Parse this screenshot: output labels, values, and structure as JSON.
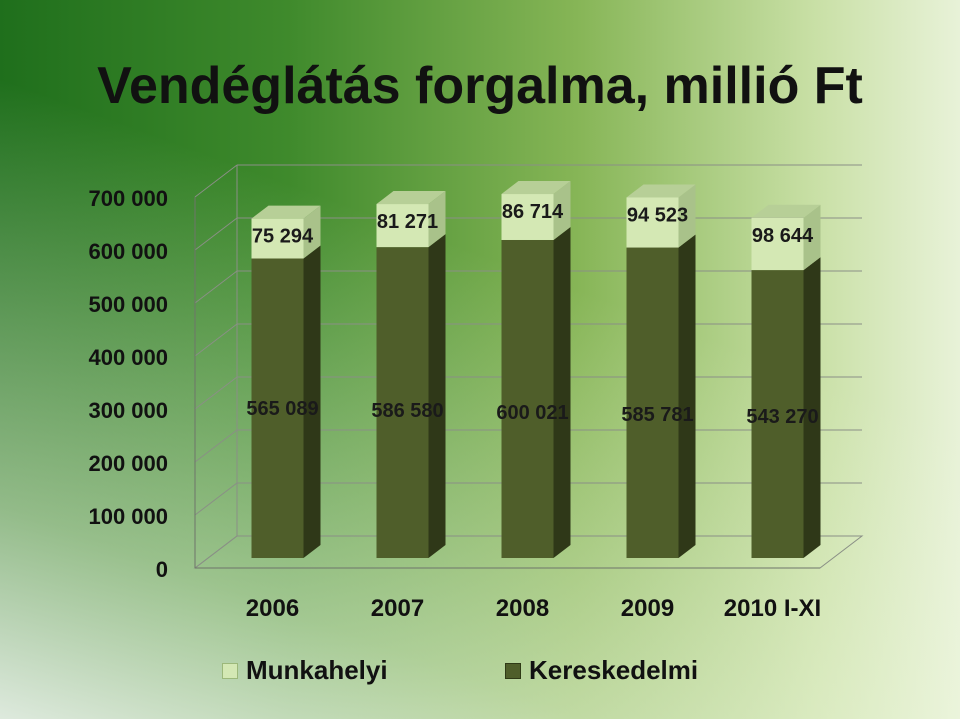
{
  "title": "Vendéglátás forgalma, millió Ft",
  "chart_data": {
    "type": "bar",
    "stacked": true,
    "title": "Vendéglátás forgalma, millió Ft",
    "categories": [
      "2006",
      "2007",
      "2008",
      "2009",
      "2010 I-XI"
    ],
    "series": [
      {
        "name": "Kereskedelmi",
        "values": [
          565089,
          586580,
          600021,
          585781,
          543270
        ],
        "value_labels": [
          "565 089",
          "586 580",
          "600 021",
          "585 781",
          "543 270"
        ],
        "color": "#4f5e2a"
      },
      {
        "name": "Munkahelyi",
        "values": [
          75294,
          81271,
          86714,
          94523,
          98644
        ],
        "value_labels": [
          "75 294",
          "81 271",
          "86 714",
          "94 523",
          "98 644"
        ],
        "color": "#d4e8b4"
      }
    ],
    "ylim": [
      0,
      700000
    ],
    "yticks": [
      0,
      100000,
      200000,
      300000,
      400000,
      500000,
      600000,
      700000
    ],
    "ytick_labels": [
      "0",
      "100 000",
      "200 000",
      "300 000",
      "400 000",
      "500 000",
      "600 000",
      "700 000"
    ],
    "grid": true,
    "legend_position": "bottom"
  }
}
